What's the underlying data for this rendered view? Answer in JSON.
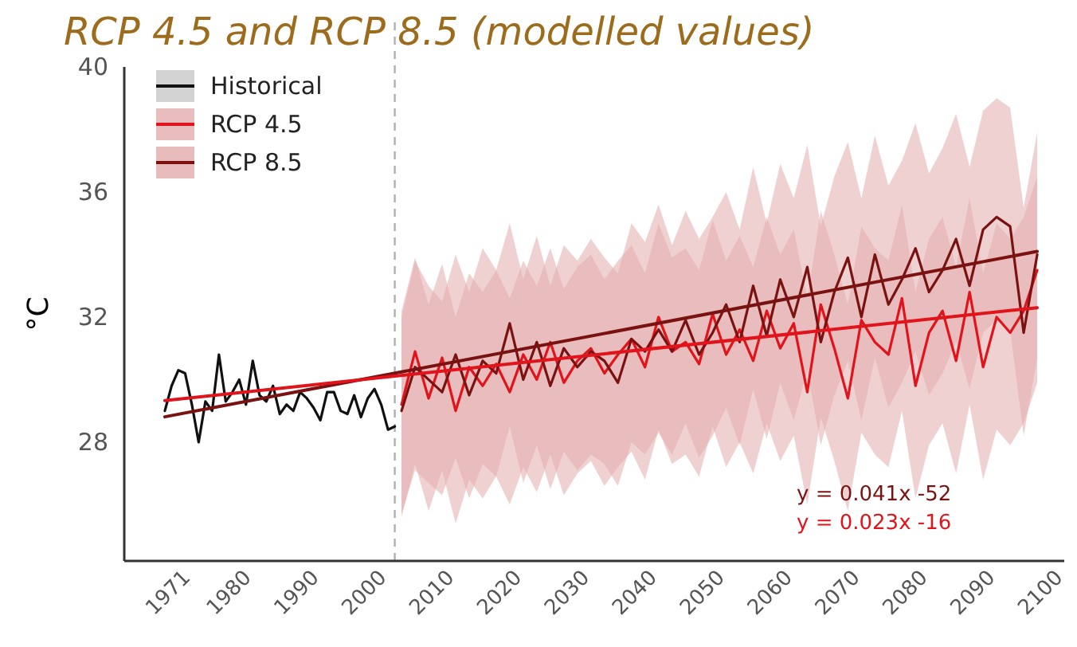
{
  "chart_data": {
    "type": "line",
    "title": "RCP 4.5 and RCP 8.5 (modelled values)",
    "ylabel": "°C",
    "xlim": [
      1965,
      2104
    ],
    "xticks": [
      1971,
      1980,
      1990,
      2000,
      2010,
      2020,
      2030,
      2040,
      2050,
      2060,
      2070,
      2080,
      2090,
      2100
    ],
    "ylim": [
      24.2,
      40
    ],
    "yticks": [
      28,
      32,
      36,
      40
    ],
    "grid": false,
    "legend": "top left",
    "ref_lines": [
      {
        "axis": "x",
        "value": 2005,
        "line_style": "dashed",
        "color": "#b0b0b0"
      }
    ],
    "annotations": [
      "y = 0.041x -52",
      "y = 0.023x -16"
    ],
    "series": [
      {
        "name": "Historical",
        "color": "#111111",
        "x": [
          1971,
          1972,
          1973,
          1974,
          1975,
          1976,
          1977,
          1978,
          1979,
          1980,
          1981,
          1982,
          1983,
          1984,
          1985,
          1986,
          1987,
          1988,
          1989,
          1990,
          1991,
          1992,
          1993,
          1994,
          1995,
          1996,
          1997,
          1998,
          1999,
          2000,
          2001,
          2002,
          2003,
          2004,
          2005
        ],
        "values": [
          29.0,
          29.8,
          30.3,
          30.2,
          29.2,
          28.0,
          29.3,
          29.0,
          30.8,
          29.3,
          29.6,
          30.0,
          29.2,
          30.6,
          29.5,
          29.3,
          29.8,
          28.9,
          29.2,
          29.0,
          29.6,
          29.4,
          29.1,
          28.7,
          29.6,
          29.6,
          29.0,
          28.9,
          29.5,
          28.8,
          29.4,
          29.7,
          29.2,
          28.4,
          28.5
        ]
      },
      {
        "name": "RCP 4.5",
        "color": "#e0141a",
        "x": [
          2006,
          2008,
          2010,
          2012,
          2014,
          2016,
          2018,
          2020,
          2022,
          2024,
          2026,
          2028,
          2030,
          2032,
          2034,
          2036,
          2038,
          2040,
          2042,
          2044,
          2046,
          2048,
          2050,
          2052,
          2054,
          2056,
          2058,
          2060,
          2062,
          2064,
          2066,
          2068,
          2070,
          2072,
          2074,
          2076,
          2078,
          2080,
          2082,
          2084,
          2086,
          2088,
          2090,
          2092,
          2094,
          2096,
          2098,
          2100
        ],
        "values": [
          29.2,
          30.9,
          29.4,
          30.7,
          29.0,
          30.4,
          29.8,
          30.5,
          29.6,
          30.8,
          30.0,
          31.2,
          29.9,
          30.6,
          31.0,
          30.2,
          30.8,
          31.3,
          30.4,
          32.0,
          30.9,
          31.2,
          30.5,
          32.1,
          30.8,
          31.6,
          30.6,
          32.2,
          31.0,
          31.8,
          29.6,
          32.4,
          31.0,
          29.4,
          31.9,
          31.2,
          30.8,
          32.6,
          29.8,
          31.5,
          32.2,
          30.6,
          32.8,
          30.4,
          32.0,
          31.5,
          32.2,
          33.5
        ],
        "upper": [
          32.2,
          33.9,
          32.4,
          33.7,
          32.0,
          33.4,
          32.8,
          33.5,
          32.6,
          33.8,
          33.0,
          34.2,
          32.9,
          33.6,
          34.0,
          33.2,
          33.8,
          34.3,
          33.4,
          35.0,
          33.9,
          34.2,
          33.5,
          35.1,
          33.8,
          34.6,
          33.6,
          35.2,
          34.0,
          34.8,
          32.6,
          35.4,
          34.0,
          32.4,
          34.9,
          34.2,
          33.8,
          35.6,
          32.8,
          34.5,
          35.2,
          33.6,
          35.8,
          33.4,
          35.0,
          34.5,
          35.2,
          36.5
        ],
        "lower": [
          25.6,
          27.3,
          25.8,
          27.1,
          25.4,
          26.8,
          26.2,
          26.9,
          26.0,
          27.2,
          26.4,
          27.6,
          26.3,
          27.0,
          27.4,
          26.6,
          27.2,
          27.7,
          26.8,
          28.4,
          27.3,
          27.6,
          26.9,
          28.5,
          27.2,
          28.0,
          27.0,
          28.6,
          27.4,
          28.2,
          26.0,
          28.8,
          27.4,
          25.8,
          28.3,
          27.6,
          27.2,
          29.0,
          26.2,
          27.9,
          28.6,
          27.0,
          29.2,
          26.8,
          28.4,
          27.9,
          28.6,
          29.9
        ]
      },
      {
        "name": "RCP 8.5",
        "color": "#7a1212",
        "x": [
          2006,
          2008,
          2010,
          2012,
          2014,
          2016,
          2018,
          2020,
          2022,
          2024,
          2026,
          2028,
          2030,
          2032,
          2034,
          2036,
          2038,
          2040,
          2042,
          2044,
          2046,
          2048,
          2050,
          2052,
          2054,
          2056,
          2058,
          2060,
          2062,
          2064,
          2066,
          2068,
          2070,
          2072,
          2074,
          2076,
          2078,
          2080,
          2082,
          2084,
          2086,
          2088,
          2090,
          2092,
          2094,
          2096,
          2098,
          2100
        ],
        "values": [
          29.0,
          30.4,
          30.0,
          29.6,
          30.8,
          29.5,
          30.6,
          30.2,
          31.8,
          30.0,
          31.2,
          29.8,
          31.0,
          30.4,
          30.9,
          30.6,
          29.9,
          31.3,
          30.9,
          31.6,
          30.9,
          31.9,
          30.8,
          31.5,
          32.4,
          31.2,
          33.0,
          31.4,
          33.2,
          32.0,
          33.6,
          31.2,
          32.8,
          33.9,
          32.0,
          34.0,
          32.4,
          33.2,
          34.2,
          32.8,
          33.5,
          34.5,
          33.0,
          34.8,
          35.2,
          34.9,
          31.5,
          34.0
        ],
        "upper": [
          32.0,
          33.8,
          33.0,
          32.5,
          34.0,
          32.8,
          34.2,
          33.5,
          35.0,
          33.2,
          34.6,
          33.0,
          34.3,
          33.8,
          34.5,
          33.9,
          33.4,
          35.0,
          34.4,
          35.6,
          34.3,
          35.4,
          34.5,
          35.2,
          36.0,
          34.8,
          36.8,
          35.0,
          36.9,
          35.8,
          37.5,
          34.9,
          36.5,
          37.6,
          35.8,
          37.8,
          36.2,
          37.0,
          38.2,
          36.6,
          37.4,
          38.5,
          36.8,
          38.6,
          39.0,
          38.7,
          35.5,
          37.9
        ],
        "lower": [
          25.7,
          27.1,
          26.7,
          26.3,
          27.5,
          26.2,
          27.3,
          26.9,
          28.5,
          26.7,
          27.9,
          26.5,
          27.7,
          27.1,
          27.6,
          27.3,
          26.6,
          28.0,
          27.6,
          28.3,
          27.6,
          28.6,
          27.5,
          28.2,
          29.1,
          27.9,
          29.7,
          28.1,
          29.9,
          28.7,
          30.3,
          27.9,
          29.5,
          30.6,
          28.7,
          30.7,
          29.1,
          29.9,
          30.9,
          29.5,
          30.2,
          31.2,
          29.7,
          31.5,
          31.9,
          31.6,
          28.2,
          30.7
        ]
      },
      {
        "color": "#7a1212",
        "x": [
          1971,
          2100
        ],
        "values": [
          28.81,
          34.1
        ]
      },
      {
        "color": "#e0141a",
        "x": [
          1971,
          2100
        ],
        "values": [
          29.33,
          32.3
        ]
      }
    ]
  }
}
